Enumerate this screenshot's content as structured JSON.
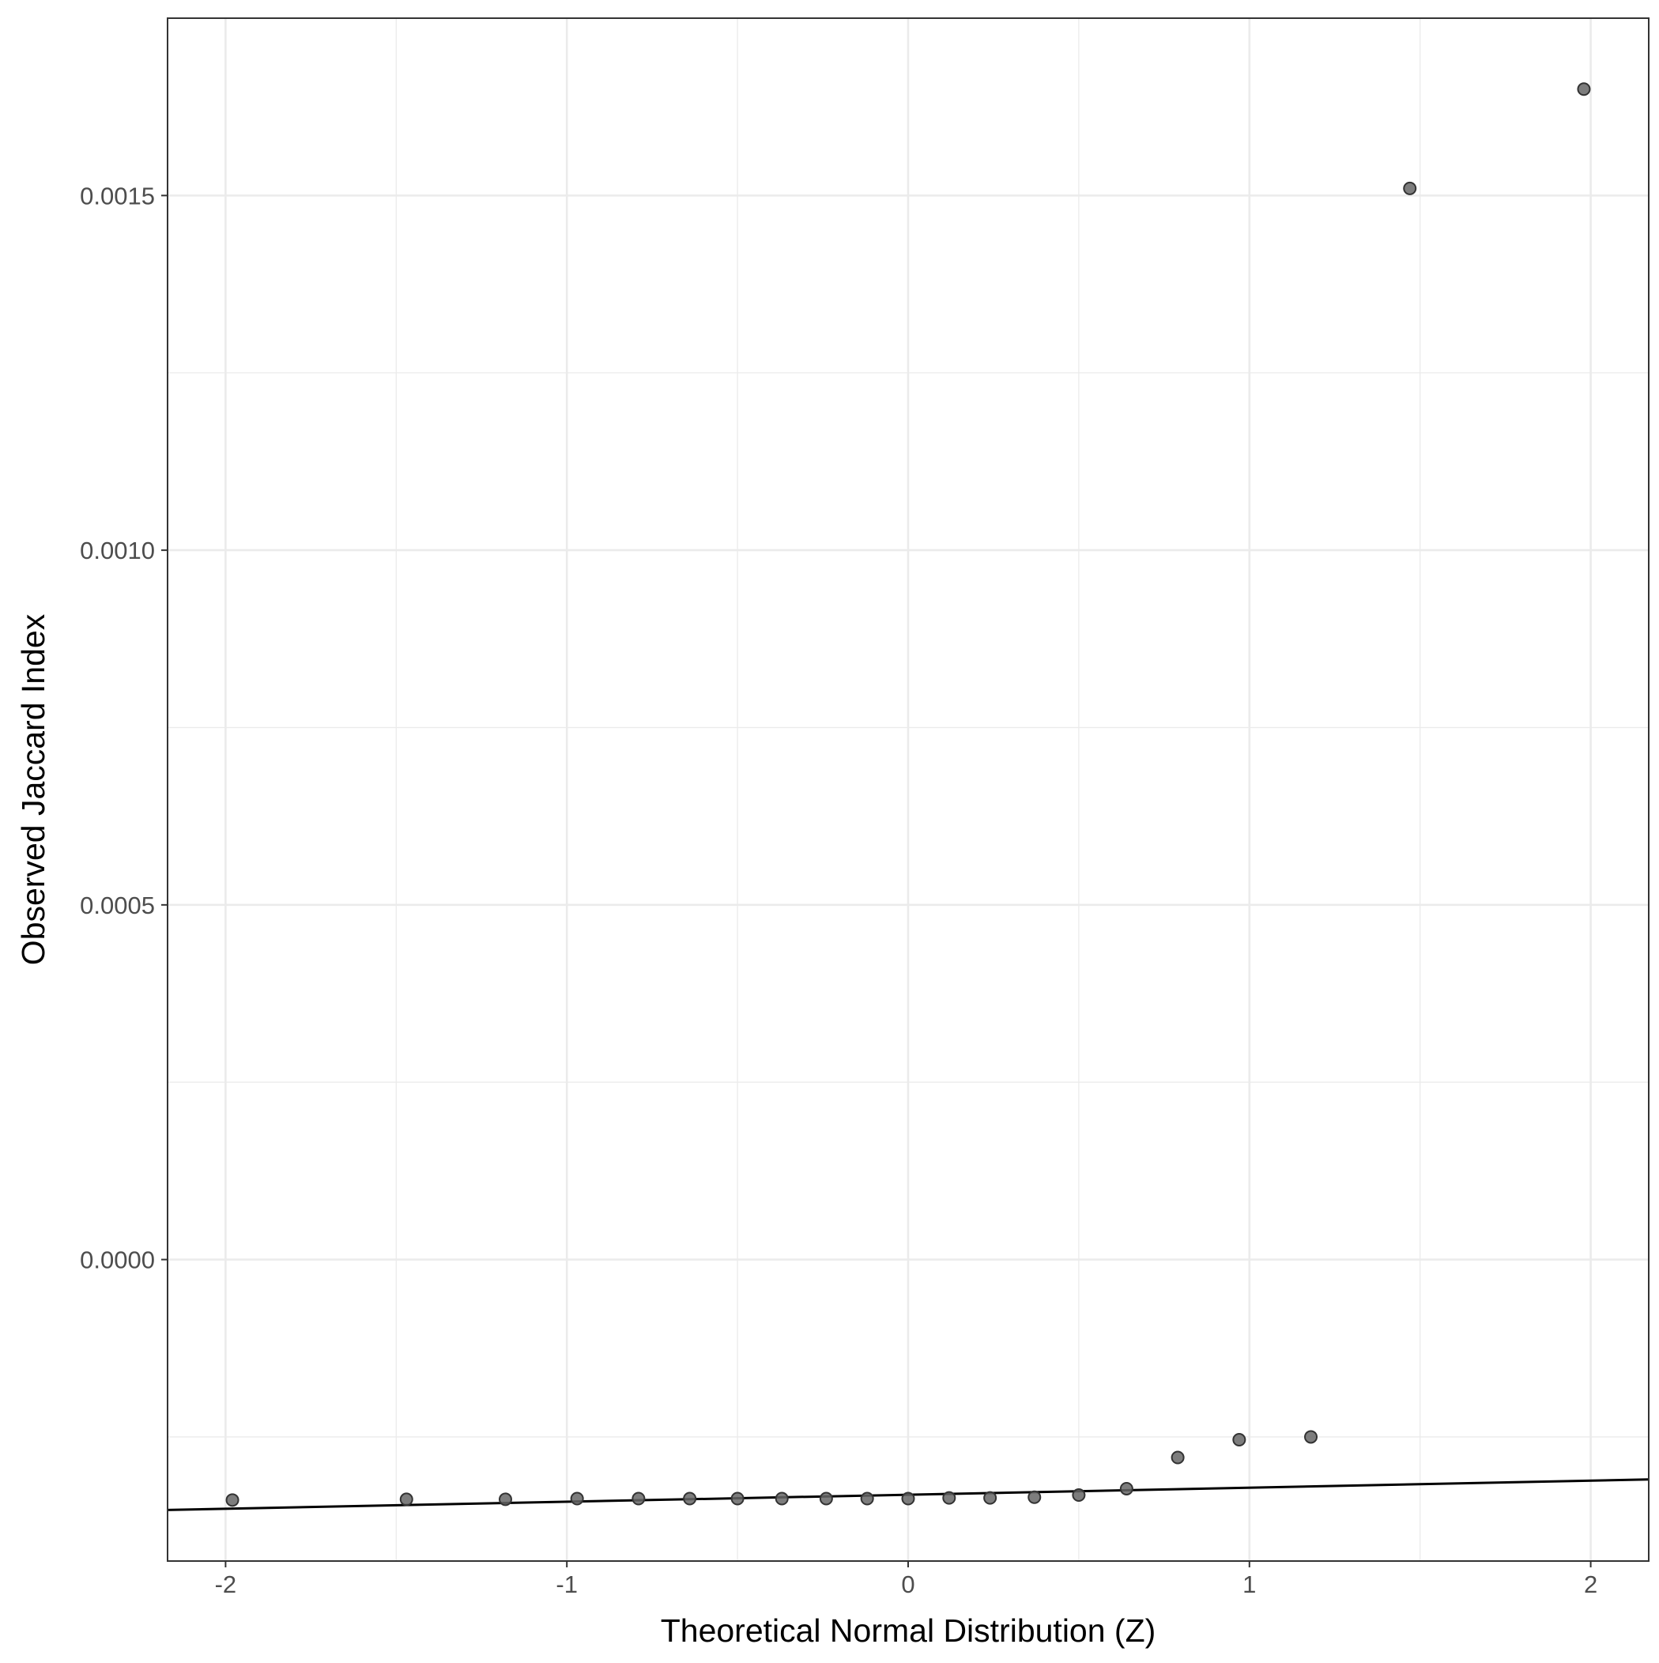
{
  "chart_data": {
    "type": "scatter",
    "title": "",
    "xlabel": "Theoretical Normal Distribution (Z)",
    "ylabel": "Observed Jaccard Index",
    "xlim": [
      -2.17,
      2.17
    ],
    "ylim": [
      -0.000425,
      0.00175
    ],
    "x_ticks": [
      {
        "value": -2,
        "label": "-2"
      },
      {
        "value": -1,
        "label": "-1"
      },
      {
        "value": 0,
        "label": "0"
      },
      {
        "value": 1,
        "label": "1"
      },
      {
        "value": 2,
        "label": "2"
      }
    ],
    "y_ticks": [
      {
        "value": 0,
        "label": "0.0000"
      },
      {
        "value": 0.0005,
        "label": "0.0005"
      },
      {
        "value": 0.001,
        "label": "0.0010"
      },
      {
        "value": 0.0015,
        "label": "0.0015"
      }
    ],
    "grid": true,
    "points": [
      {
        "x": -1.98,
        "y": -0.000339
      },
      {
        "x": -1.47,
        "y": -0.000338
      },
      {
        "x": -1.18,
        "y": -0.000338
      },
      {
        "x": -0.97,
        "y": -0.000337
      },
      {
        "x": -0.79,
        "y": -0.000337
      },
      {
        "x": -0.64,
        "y": -0.000337
      },
      {
        "x": -0.5,
        "y": -0.000337
      },
      {
        "x": -0.37,
        "y": -0.000337
      },
      {
        "x": -0.24,
        "y": -0.000337
      },
      {
        "x": -0.12,
        "y": -0.000337
      },
      {
        "x": 0.0,
        "y": -0.000337
      },
      {
        "x": 0.12,
        "y": -0.000336
      },
      {
        "x": 0.24,
        "y": -0.000336
      },
      {
        "x": 0.37,
        "y": -0.000335
      },
      {
        "x": 0.5,
        "y": -0.000332
      },
      {
        "x": 0.64,
        "y": -0.000323
      },
      {
        "x": 0.79,
        "y": -0.000279
      },
      {
        "x": 0.97,
        "y": -0.000254
      },
      {
        "x": 1.18,
        "y": -0.00025
      },
      {
        "x": 1.47,
        "y": 0.00151
      },
      {
        "x": 1.98,
        "y": 0.00165
      }
    ],
    "reference_line": {
      "x": [
        -2.17,
        2.17
      ],
      "y": [
        -0.000353,
        -0.00031
      ]
    },
    "colors": {
      "point_fill": "#666666",
      "point_stroke": "#333333",
      "line": "#000000",
      "grid": "#ebebeb",
      "panel_border": "#333333"
    }
  }
}
